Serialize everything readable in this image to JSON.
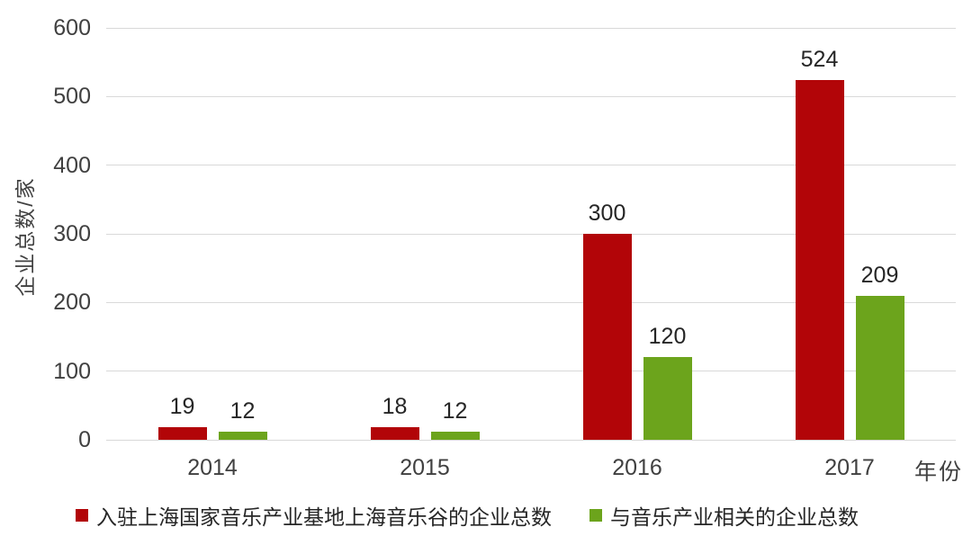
{
  "chart_data": {
    "type": "bar",
    "title": "",
    "xlabel": "年份",
    "ylabel": "企业总数/家",
    "categories": [
      "2014",
      "2015",
      "2016",
      "2017"
    ],
    "series": [
      {
        "name": "入驻上海国家音乐产业基地上海音乐谷的企业总数",
        "color": "#b20508",
        "values": [
          19,
          18,
          300,
          524
        ]
      },
      {
        "name": "与音乐产业相关的企业总数",
        "color": "#6ca41c",
        "values": [
          12,
          12,
          120,
          209
        ]
      }
    ],
    "ylim": [
      0,
      600
    ],
    "yticks": [
      0,
      100,
      200,
      300,
      400,
      500,
      600
    ],
    "grid": true,
    "legend_position": "bottom"
  },
  "colors": {
    "gridline": "#d9d9d9",
    "axis_text": "#404040",
    "value_text": "#262626",
    "background": "#ffffff"
  }
}
